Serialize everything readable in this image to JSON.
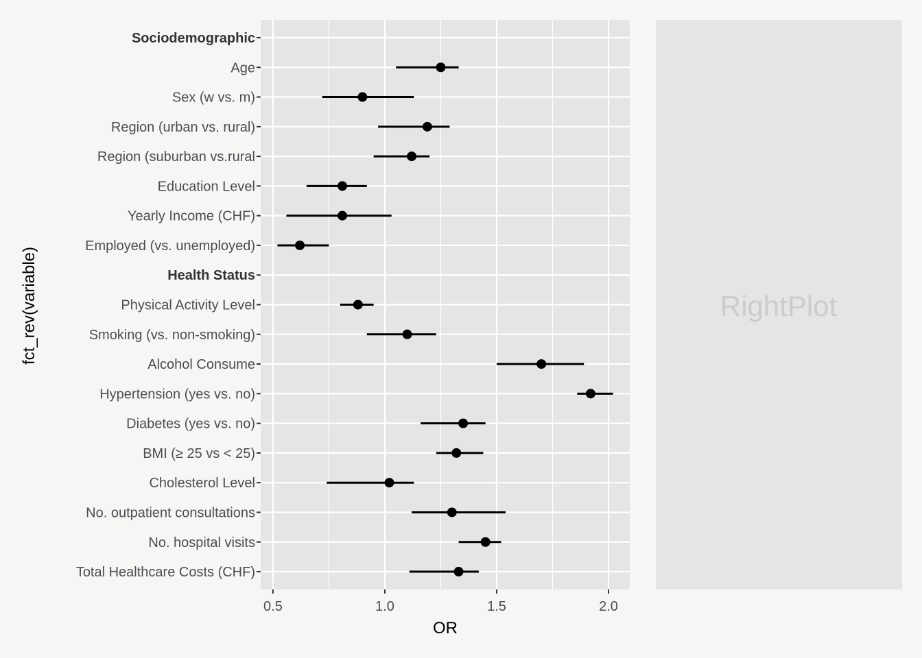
{
  "chart_data": {
    "type": "scatter",
    "subtype": "forest-plot",
    "title": "",
    "xlabel": "OR",
    "ylabel": "fct_rev(variable)",
    "xlim": [
      0.445,
      2.095
    ],
    "xticks": [
      0.5,
      1.0,
      1.5,
      2.0
    ],
    "xtick_labels": [
      "0.5",
      "1.0",
      "1.5",
      "2.0"
    ],
    "grid": true,
    "legend": "none",
    "colors": {
      "page_bg": "#f6f6f4",
      "panel_bg": "#e5e5e5",
      "grid": "#ffffff",
      "point": "#000000",
      "tick_text": "#4d4d4d"
    },
    "rows": [
      {
        "label": "Sociodemographic",
        "header": true
      },
      {
        "label": "Age",
        "or": 1.25,
        "lo": 1.05,
        "hi": 1.33
      },
      {
        "label": "Sex (w vs. m)",
        "or": 0.9,
        "lo": 0.72,
        "hi": 1.13
      },
      {
        "label": "Region (urban vs. rural)",
        "or": 1.19,
        "lo": 0.97,
        "hi": 1.29
      },
      {
        "label": "Region (suburban vs.rural",
        "or": 1.12,
        "lo": 0.95,
        "hi": 1.2
      },
      {
        "label": "Education Level",
        "or": 0.81,
        "lo": 0.65,
        "hi": 0.92
      },
      {
        "label": "Yearly Income (CHF)",
        "or": 0.81,
        "lo": 0.56,
        "hi": 1.03
      },
      {
        "label": "Employed (vs. unemployed)",
        "or": 0.62,
        "lo": 0.52,
        "hi": 0.75
      },
      {
        "label": "Health Status",
        "header": true
      },
      {
        "label": "Physical Activity Level",
        "or": 0.88,
        "lo": 0.8,
        "hi": 0.95
      },
      {
        "label": "Smoking (vs. non-smoking)",
        "or": 1.1,
        "lo": 0.92,
        "hi": 1.23
      },
      {
        "label": "Alcohol Consume",
        "or": 1.7,
        "lo": 1.5,
        "hi": 1.89
      },
      {
        "label": "Hypertension (yes vs. no)",
        "or": 1.92,
        "lo": 1.86,
        "hi": 2.02
      },
      {
        "label": "Diabetes (yes vs. no)",
        "or": 1.35,
        "lo": 1.16,
        "hi": 1.45
      },
      {
        "label": "BMI (≥ 25 vs < 25)",
        "or": 1.32,
        "lo": 1.23,
        "hi": 1.44
      },
      {
        "label": "Cholesterol Level",
        "or": 1.02,
        "lo": 0.74,
        "hi": 1.13
      },
      {
        "label": "No. outpatient consultations",
        "or": 1.3,
        "lo": 1.12,
        "hi": 1.54
      },
      {
        "label": "No. hospital visits",
        "or": 1.45,
        "lo": 1.33,
        "hi": 1.52
      },
      {
        "label": "Total Healthcare Costs (CHF)",
        "or": 1.33,
        "lo": 1.11,
        "hi": 1.42
      }
    ]
  },
  "right_panel": {
    "placeholder_text": "RightPlot"
  }
}
